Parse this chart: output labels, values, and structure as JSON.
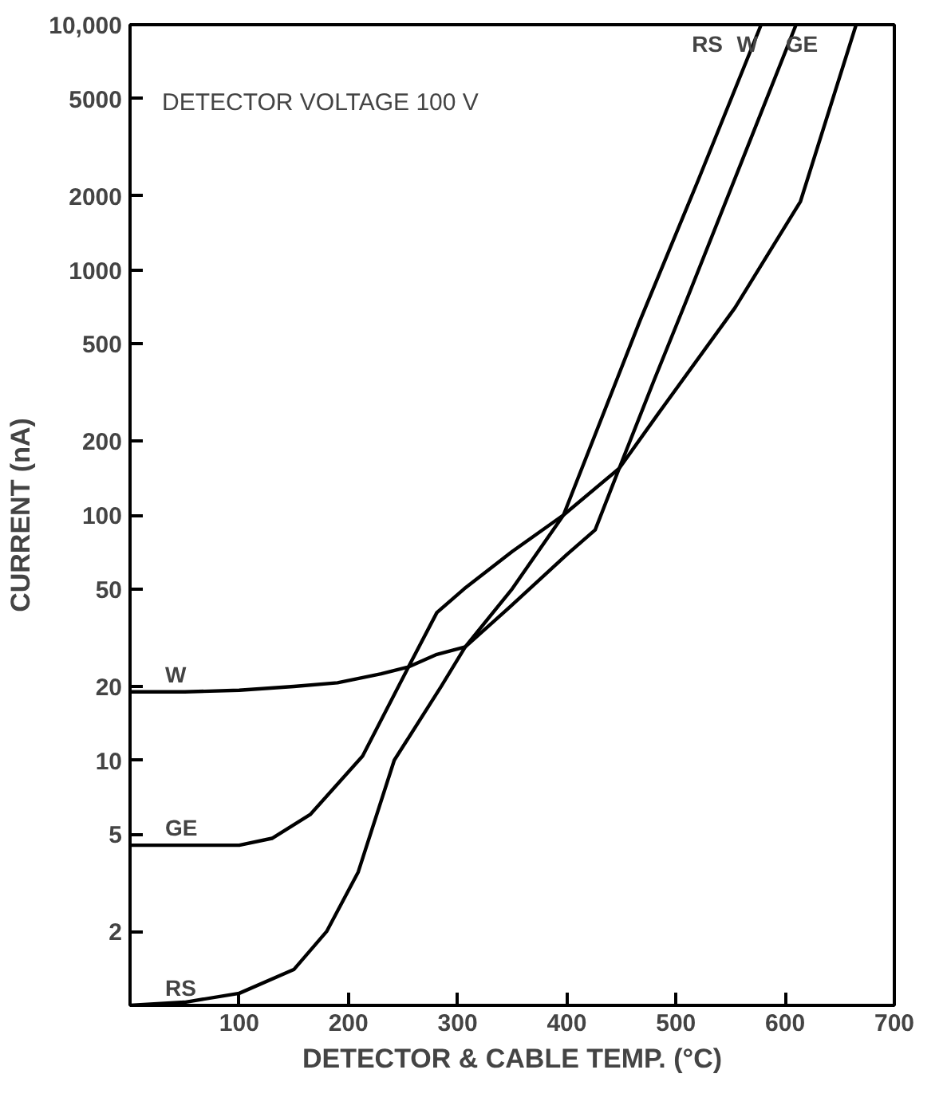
{
  "chart_data": {
    "type": "line",
    "xlabel": "DETECTOR & CABLE TEMP. (°C)",
    "ylabel": "CURRENT (nA)",
    "x": [
      0,
      50,
      100,
      150,
      190,
      230,
      255,
      281,
      307,
      350,
      400,
      426,
      448,
      480,
      509,
      560,
      610
    ],
    "series": [
      {
        "name": "RS",
        "color": "#000000",
        "x": [
          0,
          50,
          100,
          150,
          180,
          209,
          242,
          285,
          307,
          350,
          397,
          467,
          520,
          578
        ],
        "values": [
          1.0,
          1.03,
          1.12,
          1.4,
          2.0,
          3.5,
          10,
          20,
          29,
          50,
          100,
          620,
          2300,
          10000
        ]
      },
      {
        "name": "W",
        "color": "#000000",
        "values": [
          19,
          19,
          19.3,
          20,
          20.7,
          22.5,
          24,
          27,
          29,
          43,
          69,
          87,
          155,
          355,
          740,
          2750,
          10000
        ]
      },
      {
        "name": "GE",
        "color": "#000000",
        "x": [
          0,
          50,
          100,
          130,
          165,
          213,
          255,
          281,
          306,
          350,
          397,
          448,
          484,
          554,
          614,
          665
        ],
        "values": [
          4.5,
          4.5,
          4.5,
          4.8,
          6,
          10.4,
          24,
          40,
          50,
          71,
          100,
          155,
          260,
          700,
          1900,
          10000
        ]
      }
    ],
    "xlim": [
      0,
      700
    ],
    "xticks": [
      100,
      200,
      300,
      400,
      500,
      600,
      700
    ],
    "ylim": [
      1,
      10000
    ],
    "yticks": [
      2,
      5,
      10,
      20,
      50,
      100,
      200,
      500,
      1000,
      2000,
      5000,
      {
        "value": 10000,
        "label": "10,000"
      }
    ],
    "log": "y",
    "grid": false,
    "legend": "left",
    "marker": "none",
    "line_style": "solid",
    "annotations": [
      "DETECTOR VOLTAGE 100 V"
    ]
  }
}
